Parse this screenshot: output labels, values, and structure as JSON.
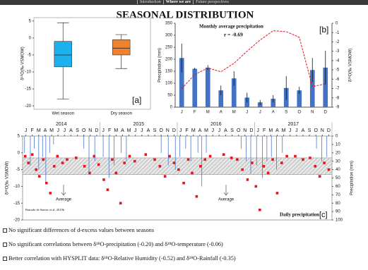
{
  "nav": {
    "items": [
      "Introduction",
      "Where we are",
      "Future perspectives"
    ]
  },
  "title": "SEASONAL DISTRIBUTION",
  "chart_data": [
    {
      "type": "box",
      "y_label": "δ¹⁸O(‰ VSMOW)",
      "panel_label": "[a]",
      "categories": [
        "Wet season",
        "Dry season"
      ],
      "boxes": [
        {
          "whisker_low": -18,
          "q1": -8.5,
          "median": -5,
          "q3": -1,
          "whisker_high": 4.5,
          "color": "#1cb0ec"
        },
        {
          "whisker_low": -9,
          "q1": -5,
          "median": -3,
          "q3": -0.5,
          "whisker_high": 1,
          "color": "#f0822e"
        }
      ],
      "ylim": [
        -21,
        6
      ],
      "yticks": [
        5,
        0,
        -5,
        -10,
        -15,
        -20
      ]
    },
    {
      "type": "bar_line",
      "y_label": "Precipitation (mm)",
      "y2_label": "δ¹⁸O(‰ VSMOW)",
      "panel_label": "[b]",
      "annotations": [
        "Monthly average precipitation",
        "r = -0.69"
      ],
      "categories": [
        "J",
        "F",
        "M",
        "A",
        "M",
        "J",
        "J",
        "A",
        "S",
        "O",
        "N",
        "D"
      ],
      "series": [
        {
          "type": "bar",
          "color": "#4472c4",
          "values": [
            205,
            160,
            165,
            70,
            120,
            40,
            20,
            35,
            80,
            70,
            155,
            165
          ],
          "errors": [
            60,
            5,
            10,
            20,
            30,
            20,
            10,
            15,
            50,
            15,
            50,
            70
          ]
        },
        {
          "type": "line",
          "color": "#e8141b",
          "axis": "y2",
          "dashed": true,
          "values": [
            -7,
            -5.5,
            -4.8,
            -5.2,
            -4.3,
            -3,
            -1.8,
            -0.8,
            -0.9,
            -1.5,
            -6.8,
            -6.5
          ]
        }
      ],
      "ylim": [
        0,
        350
      ],
      "yticks": [
        0,
        50,
        100,
        150,
        200,
        250,
        300,
        350
      ],
      "y2lim": [
        -9,
        0
      ],
      "y2ticks": [
        0,
        -1,
        -2,
        -3,
        -4,
        -5,
        -6,
        -7,
        -8,
        -9
      ]
    },
    {
      "type": "timeseries",
      "y_label": "δ¹⁸O(‰ VSMOW)",
      "y2_label": "Precipitation (mm)",
      "panel_label": "[c]",
      "annotations": [
        "Average",
        "Average",
        "Daily precipitation",
        "Batrado de Santos et al, 2019b"
      ],
      "band": [
        -6.5,
        -1.5
      ],
      "xlim": [
        0,
        48
      ],
      "xticks": [
        {
          "value": 0.5,
          "label": "J"
        },
        {
          "value": 1.5,
          "label": "F"
        },
        {
          "value": 2.5,
          "label": "M"
        },
        {
          "value": 3.5,
          "label": "A"
        },
        {
          "value": 4.5,
          "label": "M"
        },
        {
          "value": 5.5,
          "label": "J"
        },
        {
          "value": 6.5,
          "label": "J"
        },
        {
          "value": 7.5,
          "label": "A"
        },
        {
          "value": 8.5,
          "label": "S"
        },
        {
          "value": 9.5,
          "label": "O"
        },
        {
          "value": 10.5,
          "label": "N"
        },
        {
          "value": 11.5,
          "label": "D"
        },
        {
          "value": 12.5,
          "label": "J"
        },
        {
          "value": 13.5,
          "label": "F"
        },
        {
          "value": 14.5,
          "label": "M"
        },
        {
          "value": 15.5,
          "label": "A"
        },
        {
          "value": 16.5,
          "label": "M"
        },
        {
          "value": 17.5,
          "label": "J"
        },
        {
          "value": 18.5,
          "label": "J"
        },
        {
          "value": 19.5,
          "label": "A"
        },
        {
          "value": 20.5,
          "label": "S"
        },
        {
          "value": 21.5,
          "label": "O"
        },
        {
          "value": 22.5,
          "label": "N"
        },
        {
          "value": 23.5,
          "label": "D"
        },
        {
          "value": 24.5,
          "label": "J"
        },
        {
          "value": 25.5,
          "label": "F"
        },
        {
          "value": 26.5,
          "label": "M"
        },
        {
          "value": 27.5,
          "label": "A"
        },
        {
          "value": 28.5,
          "label": "M"
        },
        {
          "value": 29.5,
          "label": "J"
        },
        {
          "value": 30.5,
          "label": "J"
        },
        {
          "value": 31.5,
          "label": "A"
        },
        {
          "value": 32.5,
          "label": "S"
        },
        {
          "value": 33.5,
          "label": "O"
        },
        {
          "value": 34.5,
          "label": "N"
        },
        {
          "value": 35.5,
          "label": "D"
        },
        {
          "value": 36.5,
          "label": "J"
        },
        {
          "value": 37.5,
          "label": "F"
        },
        {
          "value": 38.5,
          "label": "M"
        },
        {
          "value": 39.5,
          "label": "A"
        },
        {
          "value": 40.5,
          "label": "M"
        },
        {
          "value": 41.5,
          "label": "J"
        },
        {
          "value": 42.5,
          "label": "J"
        },
        {
          "value": 43.5,
          "label": "A"
        },
        {
          "value": 44.5,
          "label": "S"
        },
        {
          "value": 45.5,
          "label": "O"
        },
        {
          "value": 46.5,
          "label": "N"
        },
        {
          "value": 47.5,
          "label": "D"
        }
      ],
      "year_ticks": [
        {
          "value": 6,
          "label": "2014"
        },
        {
          "value": 18,
          "label": "2015"
        },
        {
          "value": 30,
          "label": "2016"
        },
        {
          "value": 42,
          "label": "2017"
        }
      ],
      "ylim": [
        -20,
        5
      ],
      "yticks": [
        5,
        0,
        -5,
        -10,
        -15,
        -20
      ],
      "y2lim": [
        0,
        100
      ],
      "y2_inverted": true,
      "y2ticks": [
        0,
        10,
        20,
        30,
        40,
        50,
        60,
        70,
        80,
        90,
        100
      ],
      "series": [
        {
          "type": "scatter",
          "color": "#e8141b",
          "x": [
            0.4,
            0.9,
            1.5,
            2.1,
            2.6,
            3.2,
            3.7,
            4.3,
            4.9,
            5.4,
            6.2,
            6.9,
            8.3,
            9.6,
            10.4,
            11.1,
            11.8,
            12.6,
            13.2,
            13.9,
            14.5,
            15.2,
            15.8,
            16.6,
            17.4,
            19.1,
            20.5,
            21.3,
            22.1,
            22.8,
            23.5,
            24.2,
            25.0,
            25.7,
            26.3,
            27.0,
            27.6,
            28.3,
            29.1,
            31.2,
            32.4,
            33.3,
            34.1,
            34.9,
            35.6,
            36.2,
            36.8,
            37.4,
            38.1,
            38.8,
            39.5,
            40.2,
            41.0,
            42.3,
            43.5,
            44.6,
            45.4,
            46.1,
            46.8,
            47.5
          ],
          "values": [
            -1,
            -3,
            -0.5,
            -5,
            -7,
            -2,
            -9,
            -12,
            -4,
            -1,
            -3,
            -2,
            -1.5,
            -4,
            -6,
            -1,
            -3.5,
            -8,
            -11,
            -2,
            -6,
            -15,
            -3,
            -1,
            -2.5,
            -0.5,
            -2,
            -4,
            -7,
            -1,
            -3,
            -5,
            -9,
            -2,
            -6,
            -13,
            -4,
            -2,
            -1,
            -0.5,
            -1.5,
            -2,
            -5,
            -8,
            -3,
            -10,
            -17,
            -4,
            -6,
            -2,
            -12,
            -3,
            -1,
            -1,
            -2,
            -1.5,
            -4,
            -7,
            -3,
            -5
          ]
        },
        {
          "type": "bar",
          "color": "#4a78c8",
          "axis": "y2",
          "x": [
            0.3,
            1.2,
            1.8,
            2.5,
            3.1,
            3.6,
            4.2,
            4.8,
            9.5,
            10.3,
            11.2,
            12.5,
            13.4,
            14.2,
            15.3,
            16.1,
            21.5,
            22.6,
            23.7,
            24.4,
            25.3,
            26.1,
            27.2,
            27.8,
            28.5,
            33.9,
            34.7,
            35.4,
            36.3,
            37.2,
            37.9,
            38.6,
            39.4,
            40.3,
            45.6,
            46.4,
            47.2
          ],
          "values": [
            20,
            35,
            15,
            40,
            25,
            55,
            20,
            10,
            15,
            45,
            30,
            25,
            50,
            35,
            20,
            30,
            20,
            35,
            40,
            25,
            15,
            30,
            20,
            60,
            20,
            15,
            30,
            45,
            35,
            50,
            30,
            25,
            40,
            20,
            15,
            30,
            25
          ]
        }
      ]
    }
  ],
  "bullets": [
    "No significant differences of d-excess values between seasons",
    "No significant correlations between δ¹⁸O-precipitation (-0.20) and δ¹⁸O-temperature (-0.06)",
    "Better correlation with HYSPLIT data: δ¹⁸O-Relative Humidity (-0.52) and δ¹⁸O-Rainfall (-0.35)"
  ]
}
